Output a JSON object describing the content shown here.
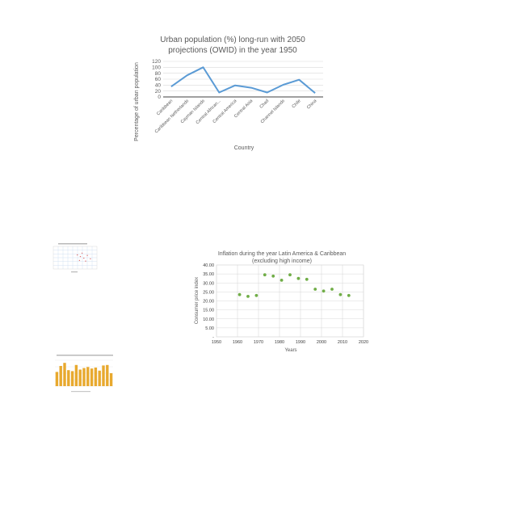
{
  "chart_data": [
    {
      "type": "line",
      "title": "Urban population (%) long-run with 2050 projections (OWID) in the year 1950",
      "title_lines": [
        "Urban population (%) long-run with 2050",
        "projections (OWID) in the year 1950"
      ],
      "xlabel": "Country",
      "ylabel": "Percentage of urban population",
      "ylim": [
        0,
        120
      ],
      "yticks": [
        "0",
        "20",
        "40",
        "60",
        "80",
        "100",
        "120"
      ],
      "categories": [
        "Caribbean",
        "Caribbean Netherlands",
        "Cayman Islands",
        "Central African...",
        "Central America",
        "Central Asia",
        "Chad",
        "Channel Islands",
        "Chile",
        "China"
      ],
      "series": [
        {
          "values": [
            35,
            73,
            100,
            15,
            39,
            31,
            15,
            41,
            58,
            13
          ]
        }
      ],
      "grid": true,
      "colors": {
        "line": "#5b9bd5",
        "grid": "#d9d9d9"
      }
    },
    {
      "type": "scatter",
      "title": "Inflation during the year Latin America & Caribbean",
      "subtitle": "(excluding high income)",
      "xlabel": "Years",
      "ylabel": "Consumer price index",
      "xlim": [
        1950,
        2020
      ],
      "ylim": [
        0,
        40
      ],
      "xticks": [
        "1950",
        "1960",
        "1970",
        "1980",
        "1990",
        "2000",
        "2010",
        "2020"
      ],
      "yticks": [
        "-",
        "5.00",
        "10.00",
        "15.00",
        "20.00",
        "25.00",
        "30.00",
        "35.00",
        "40.00"
      ],
      "points": [
        {
          "x": 1961,
          "y": 23.5
        },
        {
          "x": 1965,
          "y": 22.5
        },
        {
          "x": 1969,
          "y": 23.0
        },
        {
          "x": 1973,
          "y": 34.5
        },
        {
          "x": 1977,
          "y": 33.8
        },
        {
          "x": 1981,
          "y": 31.5
        },
        {
          "x": 1985,
          "y": 34.5
        },
        {
          "x": 1989,
          "y": 32.5
        },
        {
          "x": 1993,
          "y": 32.0
        },
        {
          "x": 1997,
          "y": 26.5
        },
        {
          "x": 2001,
          "y": 25.5
        },
        {
          "x": 2005,
          "y": 26.5
        },
        {
          "x": 2009,
          "y": 23.5
        },
        {
          "x": 2013,
          "y": 23.0
        }
      ],
      "grid": true,
      "colors": {
        "marker": "#70ad47",
        "grid": "#d9d9d9"
      }
    },
    {
      "type": "scatter",
      "thumbnail": true,
      "points": [
        {
          "x": 0.55,
          "y": 0.62
        },
        {
          "x": 0.62,
          "y": 0.55
        },
        {
          "x": 0.7,
          "y": 0.48
        },
        {
          "x": 0.66,
          "y": 0.7
        },
        {
          "x": 0.78,
          "y": 0.6
        },
        {
          "x": 0.85,
          "y": 0.45
        },
        {
          "x": 0.6,
          "y": 0.38
        },
        {
          "x": 0.74,
          "y": 0.35
        }
      ],
      "colors": {
        "marker": "#e07070",
        "grid": "#c9daf0"
      }
    },
    {
      "type": "bar",
      "thumbnail": true,
      "values": [
        55,
        78,
        90,
        62,
        58,
        82,
        64,
        70,
        74,
        68,
        72,
        60,
        80,
        82,
        50
      ],
      "ylim": [
        0,
        100
      ],
      "colors": {
        "bar": "#e8a92e",
        "grid": "#e6e6e6"
      }
    }
  ]
}
